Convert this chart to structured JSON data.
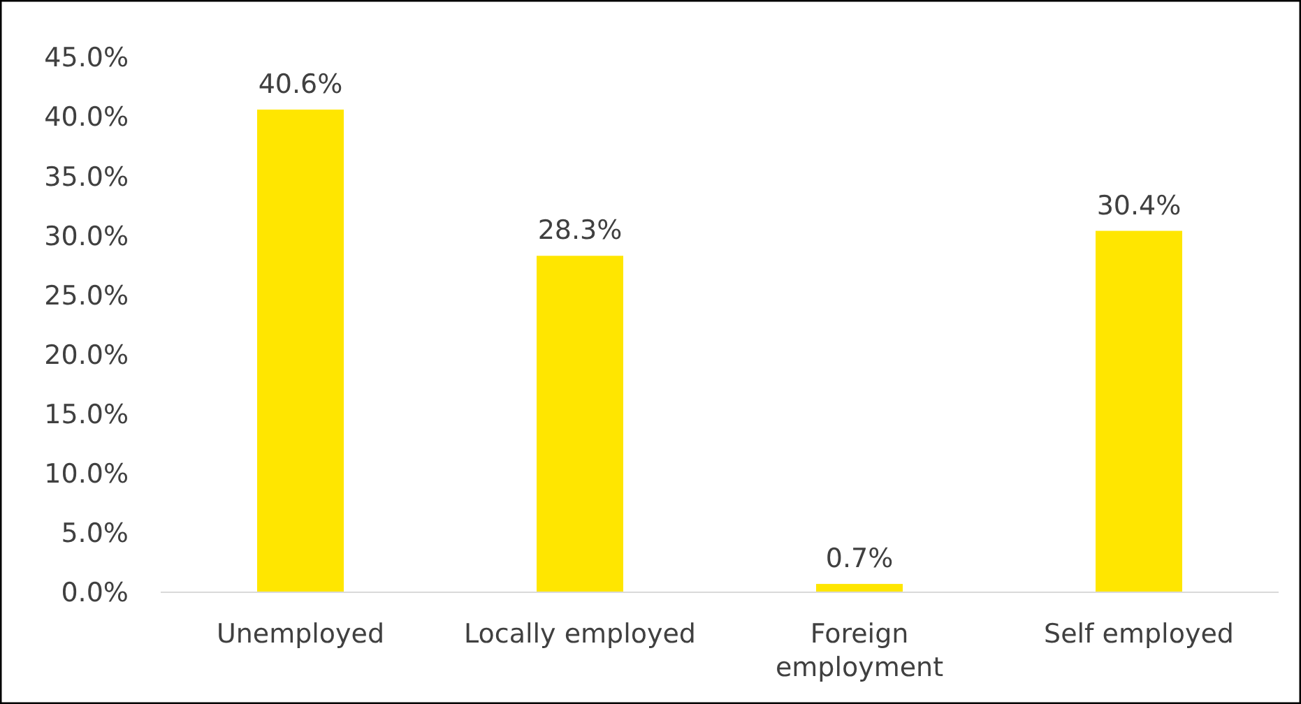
{
  "chart_data": {
    "type": "bar",
    "categories": [
      "Unemployed",
      "Locally employed",
      "Foreign employment",
      "Self employed"
    ],
    "values": [
      40.6,
      28.3,
      0.7,
      30.4
    ],
    "value_labels": [
      "40.6%",
      "28.3%",
      "0.7%",
      "30.4%"
    ],
    "color": "#ffe600",
    "ylim": [
      0,
      45
    ],
    "yticks": [
      {
        "value": 0,
        "label": "0.0%"
      },
      {
        "value": 5,
        "label": "5.0%"
      },
      {
        "value": 10,
        "label": "10.0%"
      },
      {
        "value": 15,
        "label": "15.0%"
      },
      {
        "value": 20,
        "label": "20.0%"
      },
      {
        "value": 25,
        "label": "25.0%"
      },
      {
        "value": 30,
        "label": "30.0%"
      },
      {
        "value": 35,
        "label": "35.0%"
      },
      {
        "value": 40,
        "label": "40.0%"
      },
      {
        "value": 45,
        "label": "45.0%"
      }
    ],
    "grid": false
  }
}
